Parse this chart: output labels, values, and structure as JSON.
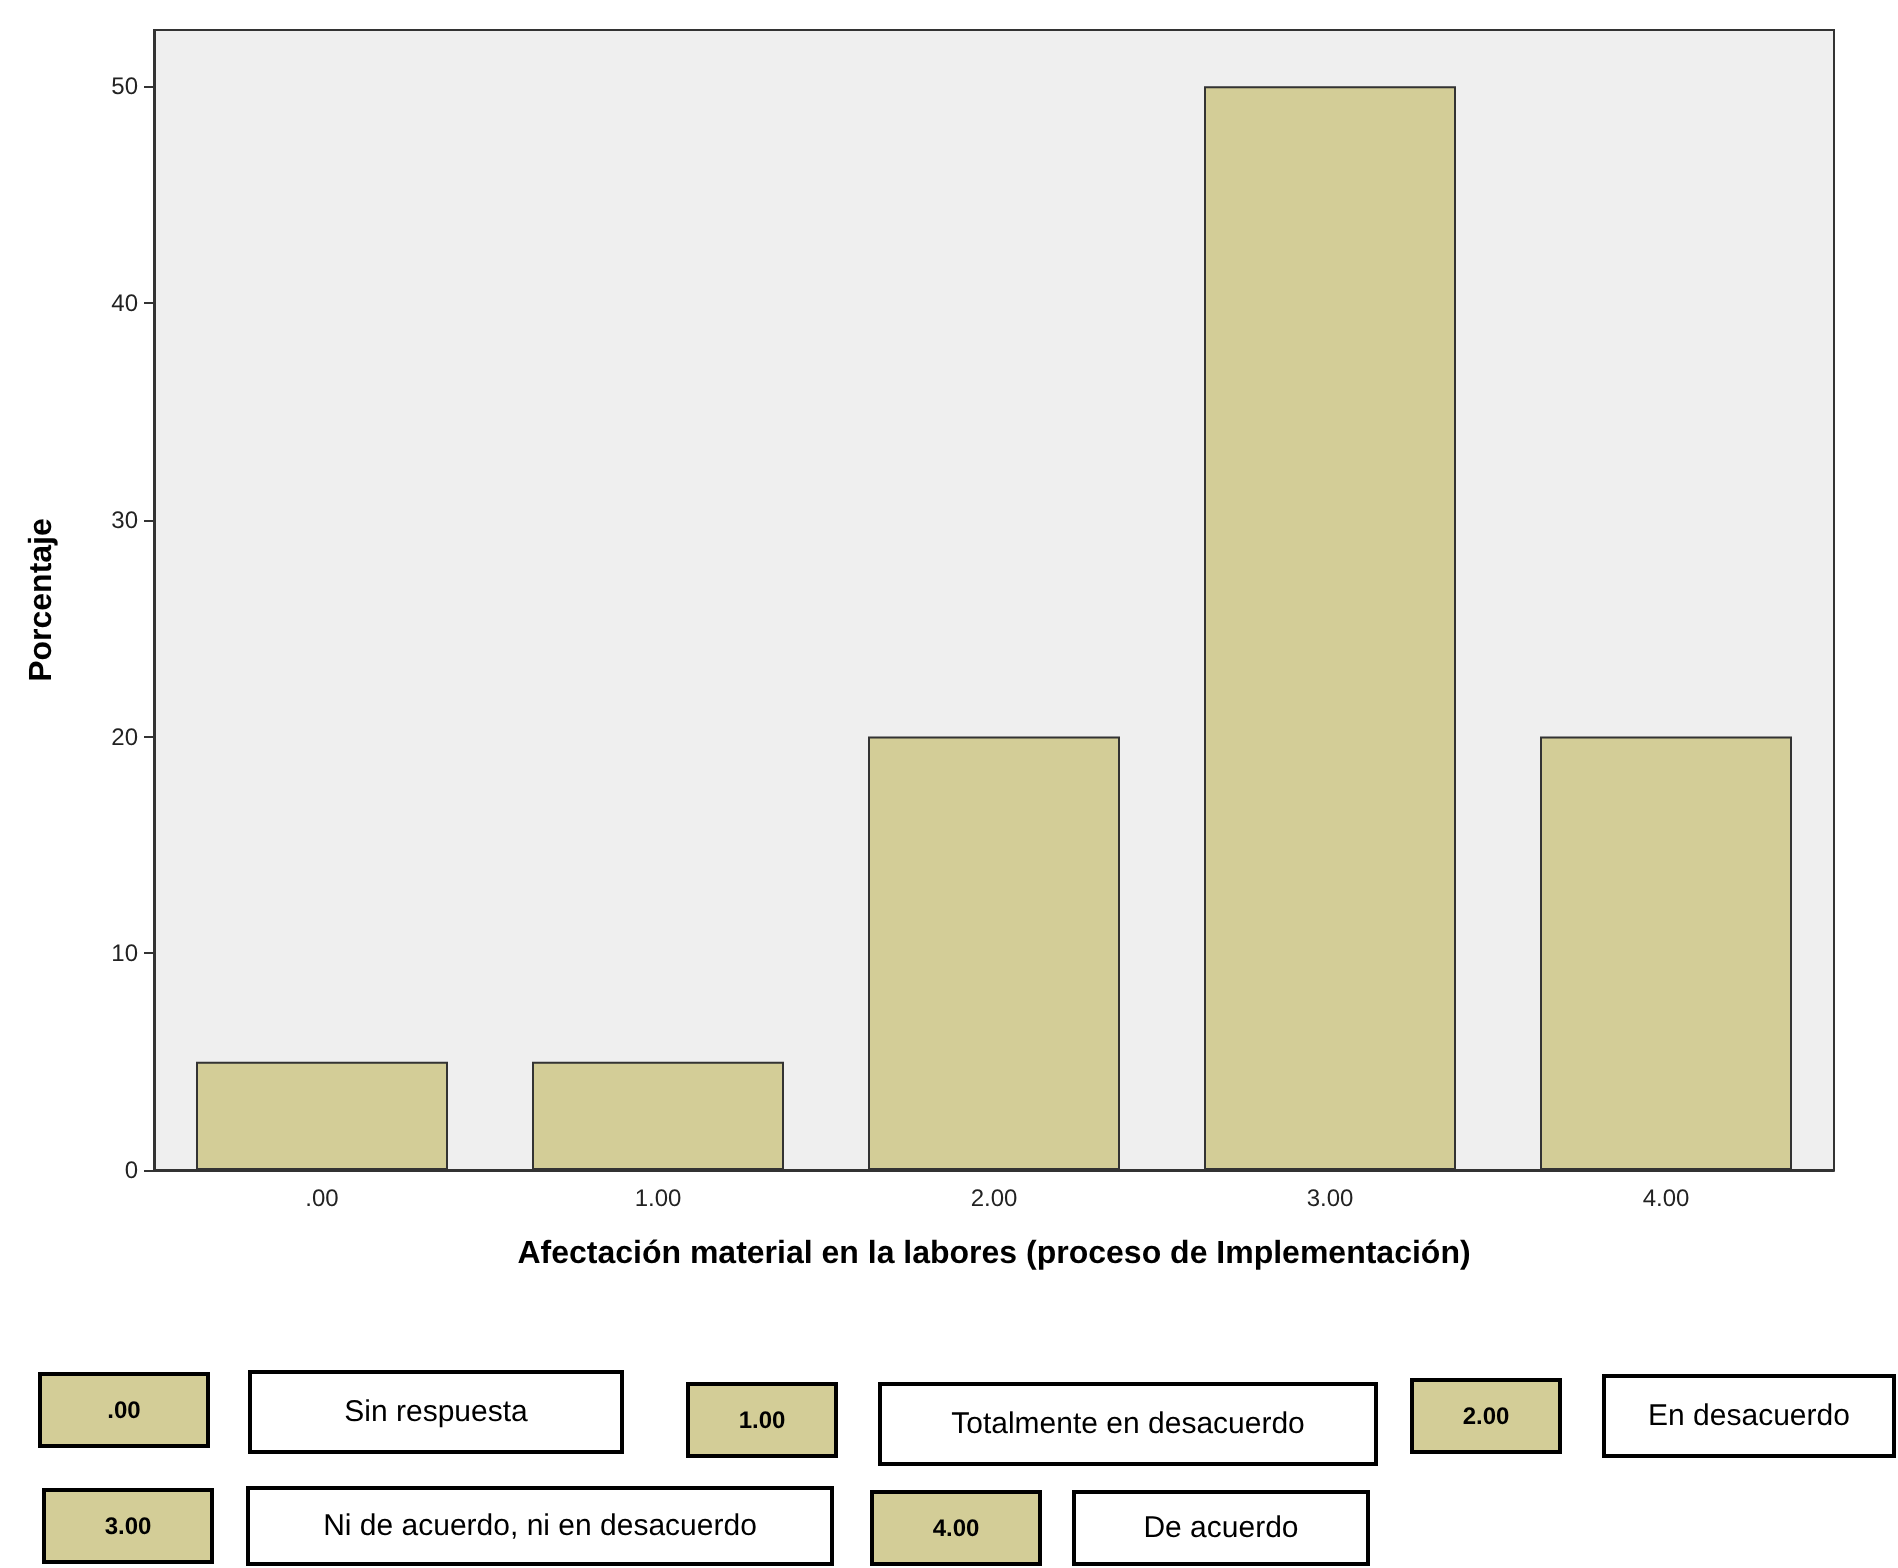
{
  "chart_data": {
    "type": "bar",
    "xlabel": "Afectación material en la labores (proceso de Implementación)",
    "ylabel": "Porcentaje",
    "categories": [
      ".00",
      "1.00",
      "2.00",
      "3.00",
      "4.00"
    ],
    "values": [
      5,
      5,
      20,
      50,
      20
    ],
    "color": "#d3cd97",
    "ylim": [
      0,
      52.6
    ],
    "yticks": [
      0,
      10,
      20,
      30,
      40,
      50
    ],
    "grid": false,
    "annotations": [
      ".00",
      "Sin respuesta",
      "1.00",
      "Totalmente en desacuerdo",
      "2.00",
      "En desacuerdo",
      "3.00",
      "Ni de acuerdo, ni en desacuerdo",
      "4.00",
      "De acuerdo"
    ]
  }
}
